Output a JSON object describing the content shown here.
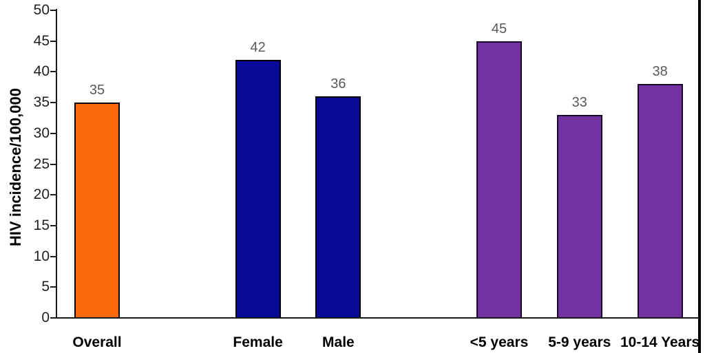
{
  "chart_data": {
    "type": "bar",
    "title": "",
    "xlabel": "",
    "ylabel": "HIV incidence/100,000",
    "ylim": [
      0,
      50
    ],
    "ytick_step": 5,
    "yticks": [
      0,
      5,
      10,
      15,
      20,
      25,
      30,
      35,
      40,
      45,
      50
    ],
    "grid": false,
    "legend": "none",
    "value_labels_shown": true,
    "categories": [
      "Overall",
      "Female",
      "Male",
      "<5 years",
      "5-9 years",
      "10-14 Years"
    ],
    "values": [
      35,
      42,
      36,
      45,
      33,
      38
    ],
    "bars": [
      {
        "label": "Overall",
        "value": 35,
        "slot": 0,
        "fill": "#F96A0A",
        "stroke": "#000000"
      },
      {
        "label": "Female",
        "value": 42,
        "slot": 2,
        "fill": "#0A0A99",
        "stroke": "#000000"
      },
      {
        "label": "Male",
        "value": 36,
        "slot": 3,
        "fill": "#0A0A99",
        "stroke": "#000000"
      },
      {
        "label": "<5 years",
        "value": 45,
        "slot": 5,
        "fill": "#7232A2",
        "stroke": "#1A0626"
      },
      {
        "label": "5-9 years",
        "value": 33,
        "slot": 6,
        "fill": "#7232A2",
        "stroke": "#1A0626"
      },
      {
        "label": "10-14 Years",
        "value": 38,
        "slot": 7,
        "fill": "#7232A2",
        "stroke": "#1A0626"
      }
    ],
    "colors": {
      "value_label": "#595959",
      "tick_label": "#1F1F1F",
      "category_label": "#000000",
      "axis": "#1A1A1A",
      "frame_right": "#000000",
      "background": "#FFFFFF"
    }
  }
}
